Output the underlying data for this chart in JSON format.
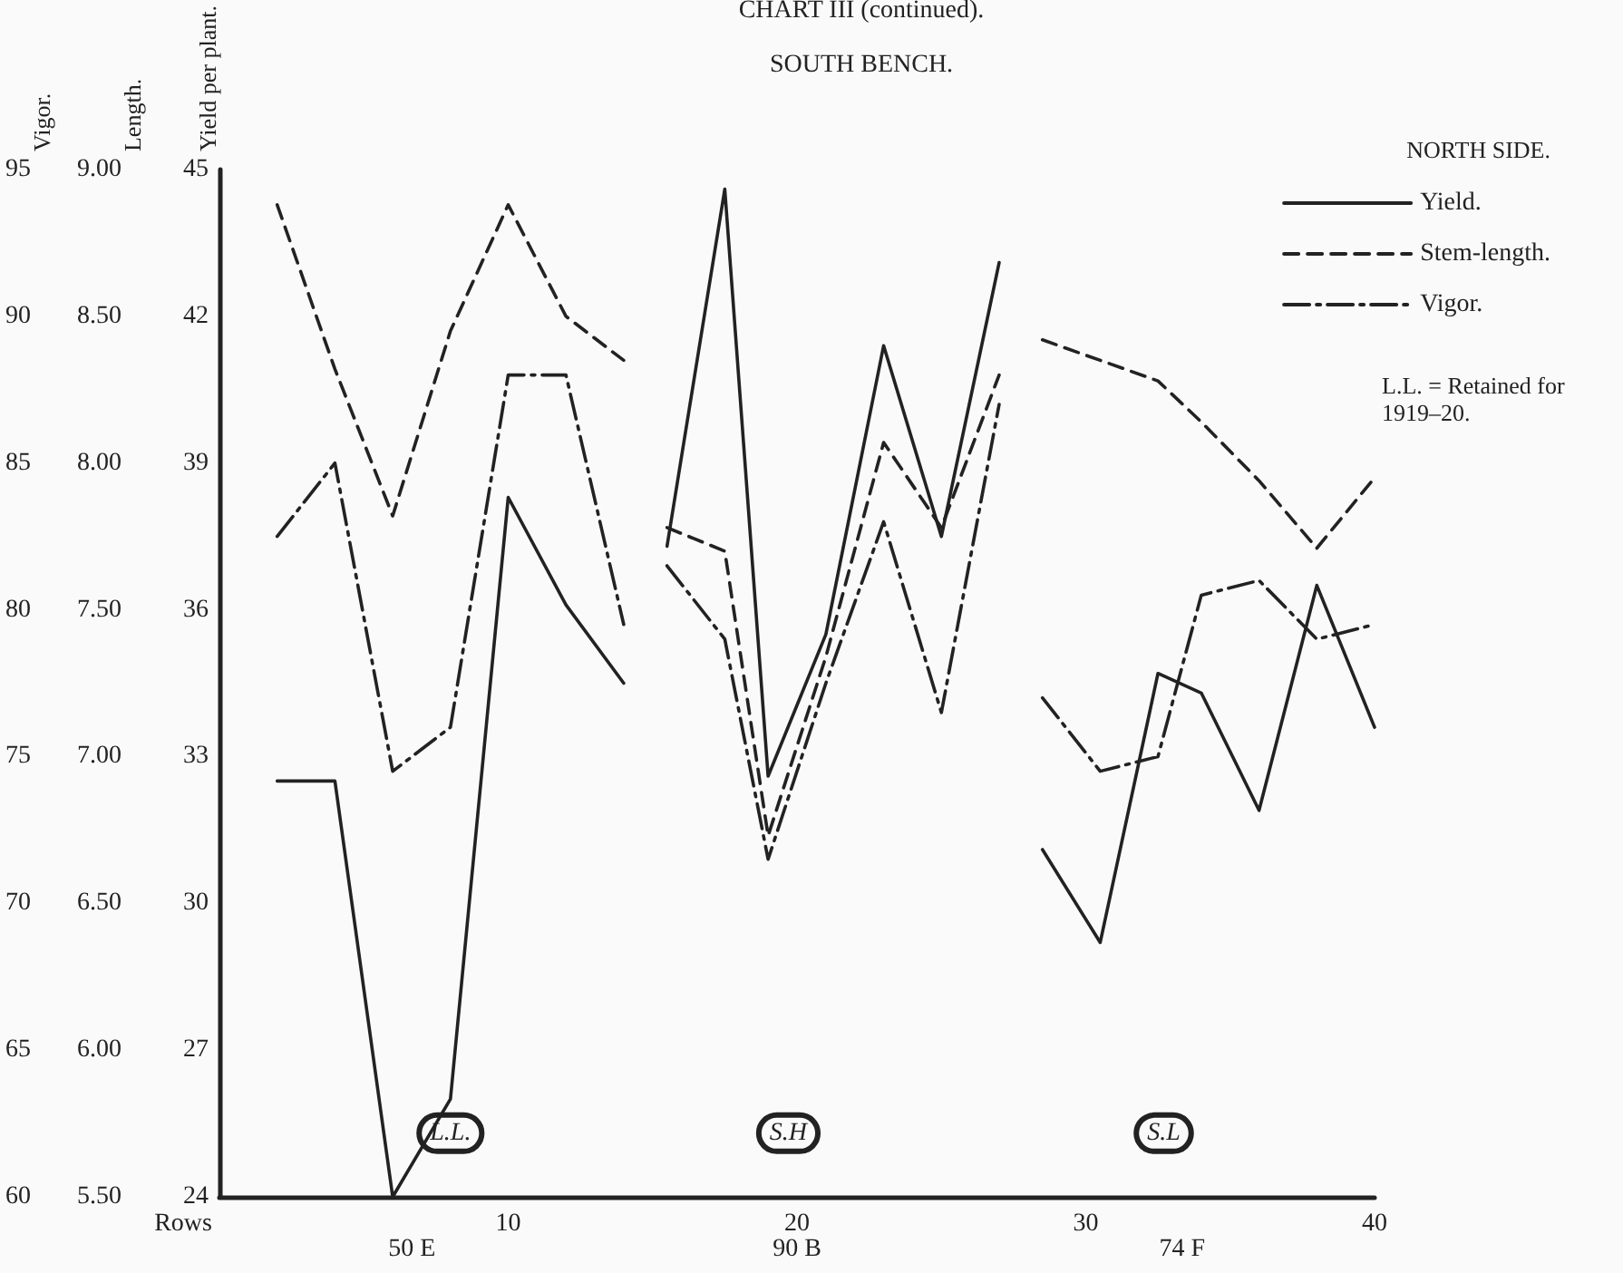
{
  "chart_data": {
    "type": "line",
    "title": "CHART III (continued).",
    "subtitle": "SOUTH BENCH.",
    "xlabel": "Rows",
    "ylabel": "Yield per plant.",
    "y2label": "Length.",
    "y3label": "Vigor.",
    "legend_title": "NORTH SIDE.",
    "legend": "top right",
    "grid": false,
    "marker": "none",
    "xlim": [
      0,
      40
    ],
    "xticks": [
      10,
      20,
      30,
      40
    ],
    "ylim": [
      24,
      45
    ],
    "yticks": [
      24,
      27,
      30,
      33,
      36,
      39,
      42,
      45
    ],
    "y2lim": [
      5.5,
      9
    ],
    "y2ticks": [
      {
        "value": 5.5,
        "label": "5.50"
      },
      {
        "value": 6,
        "label": "6.00"
      },
      {
        "value": 6.5,
        "label": "6.50"
      },
      {
        "value": 7,
        "label": "7.00"
      },
      {
        "value": 7.5,
        "label": "7.50"
      },
      {
        "value": 8,
        "label": "8.00"
      },
      {
        "value": 8.5,
        "label": "8.50"
      },
      {
        "value": 9,
        "label": "9.00"
      }
    ],
    "y3lim": [
      60,
      95
    ],
    "y3ticks": [
      60,
      65,
      70,
      75,
      80,
      85,
      90,
      95
    ],
    "series": [
      {
        "name": "Yield.",
        "color": "#222222",
        "line_style": "solid",
        "x": [
          2,
          4,
          6,
          8,
          10,
          12,
          14,
          15,
          15.5,
          17.5,
          19,
          21,
          23,
          25,
          27,
          28,
          28.5,
          30.5,
          32.5,
          34,
          36,
          38,
          40
        ],
        "values": [
          32.5,
          32.5,
          24,
          26,
          38.3,
          36.1,
          34.5,
          null,
          37.3,
          44.6,
          32.6,
          35.5,
          41.4,
          37.5,
          43.1,
          null,
          31.1,
          29.2,
          34.7,
          34.3,
          31.9,
          36.5,
          33.6
        ]
      },
      {
        "name": "Stem-length.",
        "color": "#222222",
        "line_style": "dashed",
        "axis": "y2",
        "x": [
          2,
          4,
          6,
          8,
          10,
          12,
          14,
          15,
          15.5,
          17.5,
          19,
          21,
          23,
          25,
          27,
          28,
          28.5,
          30.5,
          32.5,
          34,
          36,
          38,
          40
        ],
        "values": [
          8.88,
          8.32,
          7.82,
          8.45,
          8.88,
          8.5,
          8.35,
          null,
          7.78,
          7.7,
          6.73,
          7.34,
          8.07,
          7.78,
          8.3,
          null,
          8.42,
          8.35,
          8.28,
          8.14,
          7.94,
          7.71,
          7.95
        ]
      },
      {
        "name": "Vigor.",
        "color": "#222222",
        "line_style": "dashdot",
        "axis": "y3",
        "x": [
          2,
          4,
          6,
          8,
          10,
          12,
          14,
          15,
          15.5,
          17.5,
          19,
          21,
          23,
          25,
          27,
          28,
          28.5,
          30.5,
          32.5,
          34,
          36,
          38,
          40
        ],
        "values": [
          82.5,
          85,
          74.5,
          76,
          88,
          88,
          79.5,
          null,
          81.5,
          79,
          71.5,
          77.5,
          83,
          76.5,
          87,
          null,
          77,
          74.5,
          75,
          80.5,
          81,
          79,
          79.5
        ]
      }
    ],
    "annotations": [
      {
        "text": "L.L.",
        "x": 8,
        "y": 25.3
      },
      {
        "text": "S.H",
        "x": 19.7,
        "y": 25.3
      },
      {
        "text": "S.L",
        "x": 32.7,
        "y": 25.3
      },
      "50 E",
      "90 B",
      "74 F",
      "L.L. = Retained for 1919–20."
    ]
  }
}
